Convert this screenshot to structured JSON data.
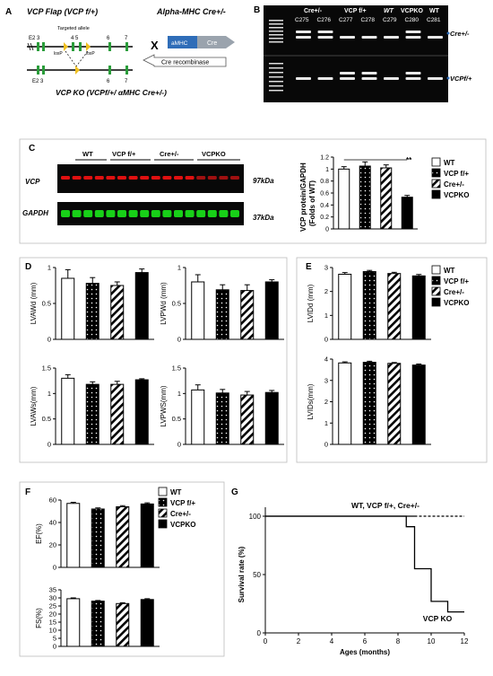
{
  "panel_letters": {
    "A": "A",
    "B": "B",
    "C": "C",
    "D": "D",
    "E": "E",
    "F": "F",
    "G": "G"
  },
  "panelA": {
    "title_left": "VCP Flap (VCP f/+)",
    "title_right": "Alpha-MHC Cre+/-",
    "cross": "X",
    "top_exon_left": "E2 3",
    "targeted_allele": "Targeted allele",
    "top_exon_45": "4  5",
    "loxp1": "loxP",
    "loxp2": "loxP",
    "top_exon_6": "6",
    "top_exon_7": "7",
    "amhc": "aMHC",
    "cre": "Cre",
    "cre_recombinase": "Cre recombinase",
    "bot_exon_left": "E2 3",
    "bot_exon_6": "6",
    "bot_exon_7": "7",
    "ko_title": "VCP KO (VCPf/+/ αMHC Cre+/-)"
  },
  "panelB": {
    "groups": [
      "Cre+/-",
      "VCP f/+",
      "WT",
      "VCPKO",
      "WT"
    ],
    "lanes": [
      "C275",
      "C276",
      "C277",
      "C278",
      "C279",
      "C280",
      "C281"
    ],
    "row_labels": [
      "Cre+/-",
      "VCPf/+"
    ]
  },
  "panelC": {
    "groups": [
      "WT",
      "VCP f/+",
      "Cre+/-",
      "VCPKO"
    ],
    "row_labels": [
      "VCP",
      "GAPDH"
    ],
    "sizes": [
      "97kDa",
      "37kDa"
    ],
    "ylabel1": "VCP protein/GAPDH",
    "ylabel2": "(Folds of WT)",
    "sig": "**",
    "legend": [
      "WT",
      "VCP f/+",
      "Cre+/-",
      "VCPKO"
    ]
  },
  "legend_labels": [
    "WT",
    "VCP f/+",
    "Cre+/-",
    "VCPKO"
  ],
  "colors": {
    "accent_red": "#e01010",
    "accent_green": "#10d010",
    "gel": "#080808"
  },
  "chart_data": [
    {
      "id": "C",
      "type": "bar",
      "categories": [
        "WT",
        "VCP f/+",
        "Cre+/-",
        "VCPKO"
      ],
      "values": [
        1.0,
        1.05,
        1.02,
        0.53
      ],
      "errors": [
        0.04,
        0.07,
        0.05,
        0.03
      ],
      "ylabel": "VCP protein/GAPDH (Folds of WT)",
      "ylim": [
        0,
        1.2
      ],
      "ticks": [
        "0",
        "0.2",
        "0.4",
        "0.6",
        "0.8",
        "1",
        "1.2"
      ]
    },
    {
      "id": "LVAWd",
      "type": "bar",
      "categories": [
        "WT",
        "VCP f/+",
        "Cre+/-",
        "VCPKO"
      ],
      "values": [
        0.85,
        0.78,
        0.75,
        0.93
      ],
      "errors": [
        0.12,
        0.08,
        0.05,
        0.05
      ],
      "ylabel": "LVAWd (mm)",
      "ylim": [
        0,
        1
      ],
      "ticks": [
        "0",
        "0.5",
        "1"
      ]
    },
    {
      "id": "LVPWd",
      "type": "bar",
      "categories": [
        "WT",
        "VCP f/+",
        "Cre+/-",
        "VCPKO"
      ],
      "values": [
        0.8,
        0.69,
        0.68,
        0.8
      ],
      "errors": [
        0.1,
        0.07,
        0.08,
        0.03
      ],
      "ylabel": "LVPWd (mm)",
      "ylim": [
        0,
        1
      ],
      "ticks": [
        "0",
        "0.5",
        "1"
      ]
    },
    {
      "id": "LVAWs",
      "type": "bar",
      "categories": [
        "WT",
        "VCP f/+",
        "Cre+/-",
        "VCPKO"
      ],
      "values": [
        1.3,
        1.18,
        1.18,
        1.27
      ],
      "errors": [
        0.07,
        0.05,
        0.06,
        0.02
      ],
      "ylabel": "LVAWs(mm)",
      "ylim": [
        0,
        1.5
      ],
      "ticks": [
        "0",
        "0.5",
        "1",
        "1.5"
      ]
    },
    {
      "id": "LVPWS",
      "type": "bar",
      "categories": [
        "WT",
        "VCP f/+",
        "Cre+/-",
        "VCPKO"
      ],
      "values": [
        1.07,
        1.01,
        0.97,
        1.02
      ],
      "errors": [
        0.1,
        0.07,
        0.07,
        0.04
      ],
      "ylabel": "LVPWS(mm)",
      "ylim": [
        0,
        1.5
      ],
      "ticks": [
        "0",
        "0.5",
        "1",
        "1.5"
      ]
    },
    {
      "id": "LVIDd",
      "type": "bar",
      "categories": [
        "WT",
        "VCP f/+",
        "Cre+/-",
        "VCPKO"
      ],
      "values": [
        2.72,
        2.83,
        2.75,
        2.65
      ],
      "errors": [
        0.07,
        0.05,
        0.05,
        0.06
      ],
      "ylabel": "LVIDd (mm)",
      "ylim": [
        0,
        3
      ],
      "ticks": [
        "0",
        "1",
        "2",
        "3"
      ]
    },
    {
      "id": "LVIDs",
      "type": "bar",
      "categories": [
        "WT",
        "VCP f/+",
        "Cre+/-",
        "VCPKO"
      ],
      "values": [
        3.82,
        3.85,
        3.8,
        3.72
      ],
      "errors": [
        0.05,
        0.05,
        0.04,
        0.05
      ],
      "ylabel": "LVIDs(mm)",
      "ylim": [
        0,
        4
      ],
      "ticks": [
        "0",
        "1",
        "2",
        "3",
        "4"
      ]
    },
    {
      "id": "EF",
      "type": "bar",
      "categories": [
        "WT",
        "VCP f/+",
        "Cre+/-",
        "VCPKO"
      ],
      "values": [
        57,
        52,
        54,
        56.5
      ],
      "errors": [
        1,
        1,
        1,
        1
      ],
      "ylabel": "EF(%)",
      "ylim": [
        0,
        60
      ],
      "ticks": [
        "0",
        "20",
        "40",
        "60"
      ]
    },
    {
      "id": "FS",
      "type": "bar",
      "categories": [
        "WT",
        "VCP f/+",
        "Cre+/-",
        "VCPKO"
      ],
      "values": [
        29.5,
        28,
        26.5,
        29
      ],
      "errors": [
        0.5,
        0.4,
        0.5,
        0.5
      ],
      "ylabel": "FS(%)",
      "ylim": [
        0,
        35
      ],
      "ticks": [
        "0",
        "5",
        "10",
        "15",
        "20",
        "25",
        "30",
        "35"
      ]
    },
    {
      "id": "G",
      "type": "line",
      "title": "",
      "xlabel": "Ages (months)",
      "ylabel": "Survival rate (%)",
      "xlim": [
        0,
        12
      ],
      "ylim": [
        0,
        100
      ],
      "xticks": [
        "0",
        "2",
        "4",
        "6",
        "8",
        "10",
        "12"
      ],
      "yticks": [
        "0",
        "50",
        "100"
      ],
      "series": [
        {
          "name": "WT, VCP f/+, Cre+/-",
          "x": [
            0,
            12
          ],
          "y": [
            100,
            100
          ]
        },
        {
          "name": "VCP KO",
          "x": [
            0,
            8,
            8,
            8.5,
            8.5,
            9,
            9,
            9.5,
            9.5,
            10,
            10,
            10.5,
            10.5,
            11,
            11,
            11.5,
            11.5,
            12
          ],
          "y": [
            100,
            100,
            100,
            100,
            91,
            91,
            55,
            55,
            55,
            55,
            27,
            27,
            27,
            27,
            18,
            18,
            18,
            18
          ]
        }
      ]
    }
  ]
}
